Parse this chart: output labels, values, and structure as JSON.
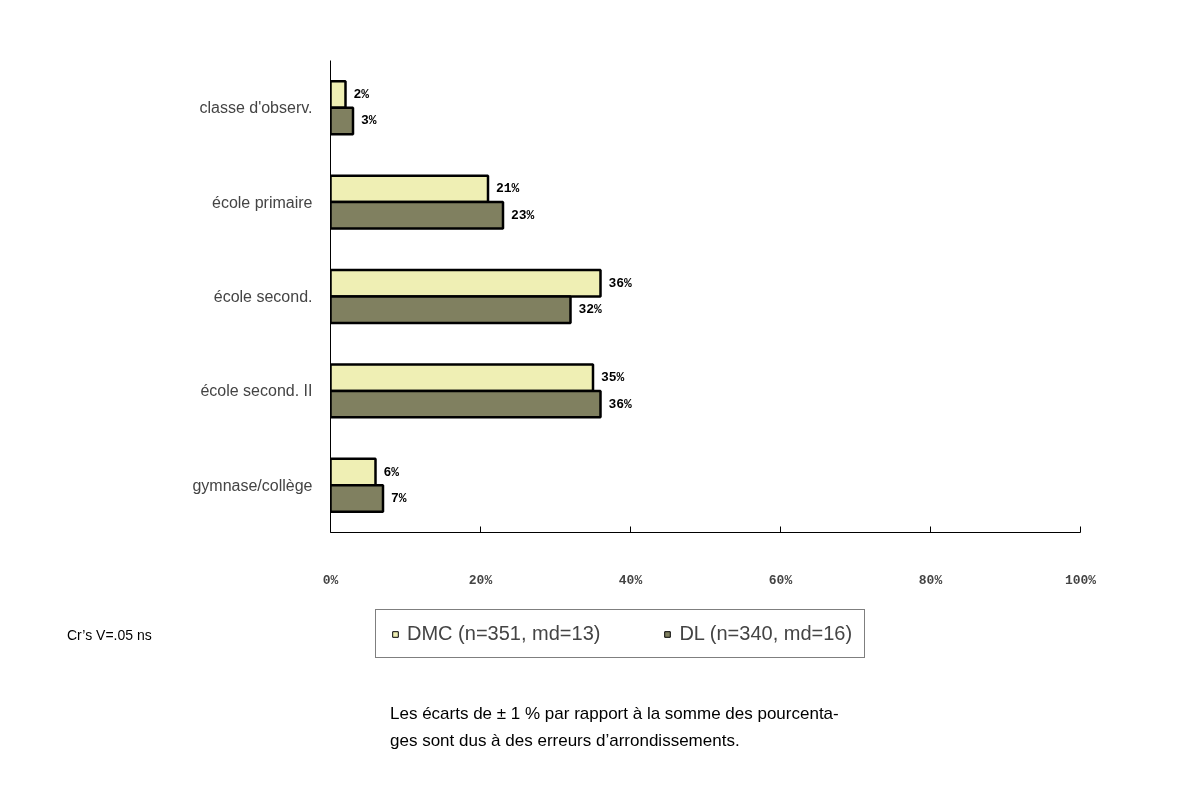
{
  "chart_data": {
    "type": "bar",
    "orientation": "horizontal",
    "categories": [
      "classe d'observ.",
      "école primaire",
      "école second.",
      "école second. II",
      "gymnase/collège"
    ],
    "series": [
      {
        "name": "DMC (n=351, md=13)",
        "color": "#efefb4",
        "values": [
          2,
          21,
          36,
          35,
          6
        ],
        "value_labels": [
          "2%",
          "21%",
          "36%",
          "35%",
          "6%"
        ]
      },
      {
        "name": "DL (n=340, md=16)",
        "color": "#808060",
        "values": [
          3,
          23,
          32,
          36,
          7
        ],
        "value_labels": [
          "3%",
          "23%",
          "32%",
          "36%",
          "7%"
        ]
      }
    ],
    "xlim": [
      0,
      100
    ],
    "xticks": [
      {
        "value": 0,
        "label": "0%"
      },
      {
        "value": 20,
        "label": "20%"
      },
      {
        "value": 40,
        "label": "40%"
      },
      {
        "value": 60,
        "label": "60%"
      },
      {
        "value": 80,
        "label": "80%"
      },
      {
        "value": 100,
        "label": "100%"
      }
    ],
    "grid": false,
    "legend": "bottom",
    "annotations": [
      "Cr’s V=.05 ns",
      "Les écarts de ± 1 % par rapport à la somme des pourcenta-\nges sont dus à des erreurs d’arrondissements."
    ]
  }
}
